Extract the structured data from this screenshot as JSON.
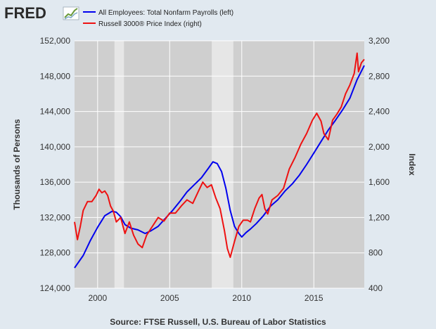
{
  "logo": {
    "text": "FRED",
    "icon": "fred-chart-logo-icon"
  },
  "colors": {
    "background": "#e1e9f0",
    "plot_area": "#cfcfcf",
    "recession": "#e6e6e6",
    "grid": "#ffffff",
    "series_left": "#0000ee",
    "series_right": "#ee1111"
  },
  "source": "Source: FTSE Russell, U.S. Bureau of Labor Statistics",
  "chart_data": {
    "type": "line",
    "title": "",
    "xlabel": "",
    "ylabel": "Thousands of Persons",
    "ylabel_right": "Index",
    "xlim": [
      1998.4,
      2018.5
    ],
    "ylim": [
      124000,
      152000
    ],
    "ylim_right": [
      400,
      3200
    ],
    "x_ticks": [
      "2000",
      "2005",
      "2010",
      "2015"
    ],
    "x_tick_values": [
      2000,
      2005,
      2010,
      2015
    ],
    "y_ticks": [
      "124,000",
      "128,000",
      "132,000",
      "136,000",
      "140,000",
      "144,000",
      "148,000",
      "152,000"
    ],
    "y_tick_values": [
      124000,
      128000,
      132000,
      136000,
      140000,
      144000,
      148000,
      152000
    ],
    "y_ticks_right": [
      "400",
      "800",
      "1,200",
      "1,600",
      "2,000",
      "2,400",
      "2,800",
      "3,200"
    ],
    "y_tick_values_right": [
      400,
      800,
      1200,
      1600,
      2000,
      2400,
      2800,
      3200
    ],
    "grid": true,
    "legend_position": "top",
    "recessions": [
      [
        2001.17,
        2001.83
      ],
      [
        2007.92,
        2009.42
      ]
    ],
    "series": [
      {
        "name": "All Employees: Total Nonfarm Payrolls (left)",
        "axis": "left",
        "color": "#0000ee",
        "x": [
          1998.4,
          1999.0,
          1999.5,
          2000.0,
          2000.5,
          2001.0,
          2001.3,
          2001.6,
          2001.9,
          2002.3,
          2002.8,
          2003.3,
          2003.7,
          2004.2,
          2004.7,
          2005.2,
          2005.7,
          2006.2,
          2006.7,
          2007.2,
          2007.7,
          2008.0,
          2008.3,
          2008.6,
          2008.9,
          2009.2,
          2009.5,
          2009.8,
          2010.0,
          2010.3,
          2010.6,
          2011.0,
          2011.5,
          2012.0,
          2012.5,
          2013.0,
          2013.5,
          2014.0,
          2014.5,
          2015.0,
          2015.5,
          2016.0,
          2016.5,
          2017.0,
          2017.5,
          2018.0,
          2018.5
        ],
        "values": [
          126300,
          127700,
          129400,
          130900,
          132200,
          132700,
          132600,
          132100,
          131200,
          130800,
          130600,
          130200,
          130500,
          131000,
          131900,
          132800,
          133800,
          134900,
          135700,
          136500,
          137600,
          138300,
          138100,
          137200,
          135300,
          132800,
          131000,
          130200,
          129800,
          130300,
          130700,
          131300,
          132200,
          133300,
          134000,
          135000,
          135800,
          136800,
          138000,
          139300,
          140600,
          141900,
          143000,
          144200,
          145500,
          147600,
          149200
        ]
      },
      {
        "name": "Russell 3000® Price Index (right)",
        "axis": "right",
        "color": "#ee1111",
        "x": [
          1998.4,
          1998.6,
          1998.8,
          1999.0,
          1999.3,
          1999.6,
          1999.9,
          2000.1,
          2000.3,
          2000.5,
          2000.7,
          2000.9,
          2001.1,
          2001.3,
          2001.6,
          2001.9,
          2002.2,
          2002.5,
          2002.8,
          2003.1,
          2003.4,
          2003.8,
          2004.2,
          2004.6,
          2005.0,
          2005.4,
          2005.8,
          2006.2,
          2006.6,
          2007.0,
          2007.3,
          2007.6,
          2007.9,
          2008.2,
          2008.5,
          2008.8,
          2009.0,
          2009.2,
          2009.5,
          2009.8,
          2010.1,
          2010.4,
          2010.6,
          2010.9,
          2011.2,
          2011.4,
          2011.6,
          2011.8,
          2012.1,
          2012.5,
          2012.9,
          2013.3,
          2013.7,
          2014.1,
          2014.5,
          2014.9,
          2015.2,
          2015.5,
          2015.7,
          2016.0,
          2016.3,
          2016.6,
          2016.9,
          2017.2,
          2017.5,
          2017.8,
          2018.0,
          2018.1,
          2018.3,
          2018.5
        ],
        "values": [
          1150,
          950,
          1100,
          1280,
          1380,
          1380,
          1450,
          1520,
          1480,
          1500,
          1450,
          1330,
          1270,
          1150,
          1200,
          1020,
          1150,
          1000,
          900,
          860,
          1000,
          1100,
          1200,
          1160,
          1250,
          1250,
          1330,
          1400,
          1360,
          1500,
          1600,
          1540,
          1570,
          1420,
          1300,
          1050,
          850,
          750,
          930,
          1100,
          1170,
          1170,
          1150,
          1300,
          1420,
          1460,
          1300,
          1240,
          1400,
          1450,
          1530,
          1750,
          1880,
          2030,
          2150,
          2300,
          2380,
          2290,
          2150,
          2080,
          2300,
          2370,
          2450,
          2600,
          2700,
          2830,
          3060,
          2850,
          2950,
          2990
        ]
      }
    ]
  }
}
